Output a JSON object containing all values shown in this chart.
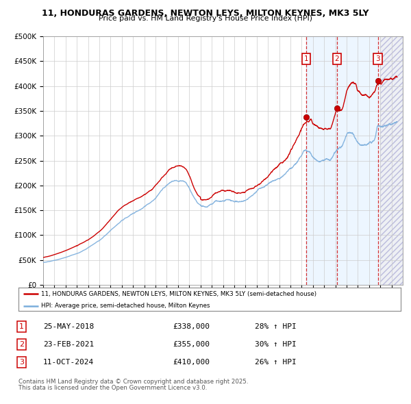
{
  "title_line1": "11, HONDURAS GARDENS, NEWTON LEYS, MILTON KEYNES, MK3 5LY",
  "title_line2": "Price paid vs. HM Land Registry's House Price Index (HPI)",
  "xlim_start": 1995.0,
  "xlim_end": 2027.0,
  "ylim_min": 0,
  "ylim_max": 500000,
  "yticks": [
    0,
    50000,
    100000,
    150000,
    200000,
    250000,
    300000,
    350000,
    400000,
    450000,
    500000
  ],
  "ytick_labels": [
    "£0",
    "£50K",
    "£100K",
    "£150K",
    "£200K",
    "£250K",
    "£300K",
    "£350K",
    "£400K",
    "£450K",
    "£500K"
  ],
  "sale_dates_num": [
    2018.39,
    2021.14,
    2024.78
  ],
  "sale_prices": [
    338000,
    355000,
    410000
  ],
  "sale_labels": [
    "1",
    "2",
    "3"
  ],
  "sale_dates_str": [
    "25-MAY-2018",
    "23-FEB-2021",
    "11-OCT-2024"
  ],
  "sale_pct": [
    "28%",
    "30%",
    "26%"
  ],
  "legend_line1": "11, HONDURAS GARDENS, NEWTON LEYS, MILTON KEYNES, MK3 5LY (semi-detached house)",
  "legend_line2": "HPI: Average price, semi-detached house, Milton Keynes",
  "footer_line1": "Contains HM Land Registry data © Crown copyright and database right 2025.",
  "footer_line2": "This data is licensed under the Open Government Licence v3.0.",
  "red_color": "#cc0000",
  "blue_color": "#7aaddc",
  "bg_color": "#ffffff",
  "grid_color": "#cccccc",
  "hpi_region_color": "#ddeeff",
  "future_hatch_color": "#aaaacc"
}
